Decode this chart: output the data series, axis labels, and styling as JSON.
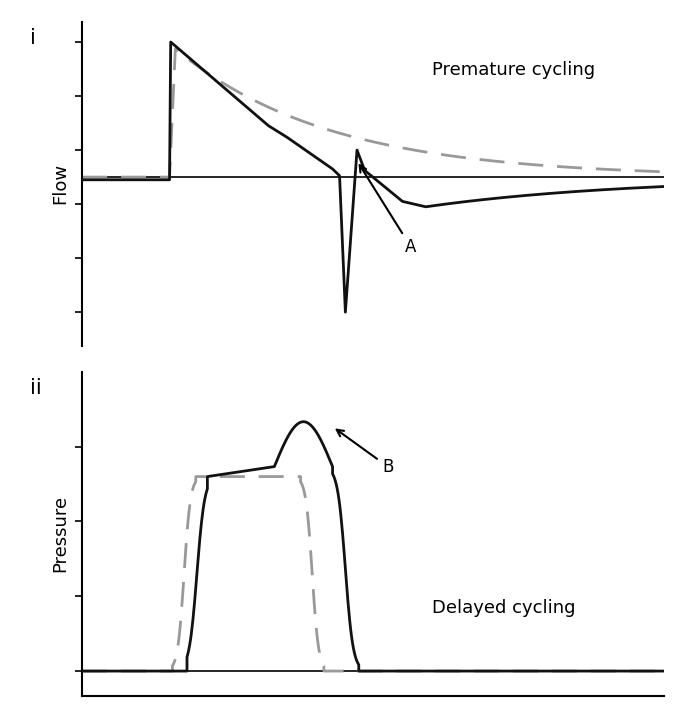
{
  "top_label": "i",
  "bottom_label": "ii",
  "flow_ylabel": "Flow",
  "pressure_ylabel": "Pressure",
  "top_annotation": "Premature cycling",
  "bottom_annotation": "Delayed cycling",
  "annotation_A": "A",
  "annotation_B": "B",
  "background_color": "#ffffff",
  "line_color_solid": "#111111",
  "line_color_dashed": "#999999",
  "linewidth_solid": 2.0,
  "linewidth_dashed": 2.0,
  "figsize": [
    6.85,
    7.25
  ],
  "dpi": 100
}
